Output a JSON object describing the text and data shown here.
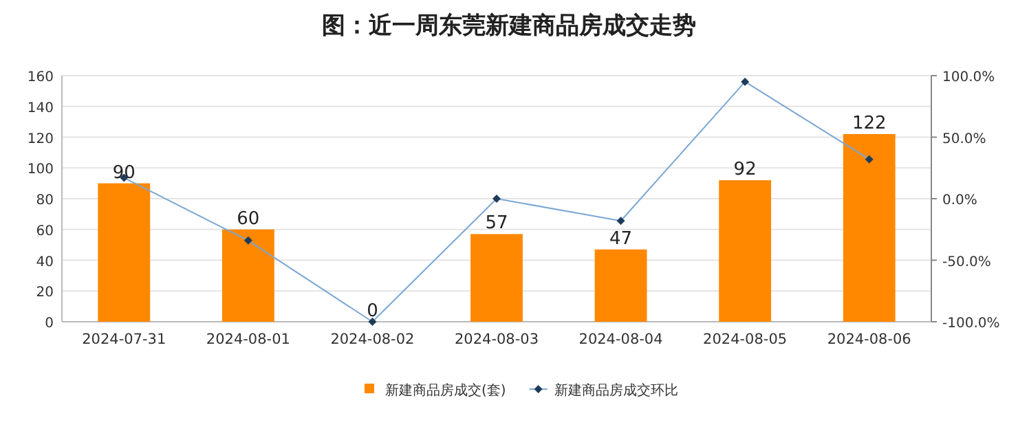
{
  "chart_data": {
    "type": "bar",
    "title": "图：近一周东莞新建商品房成交走势",
    "categories": [
      "2024-07-31",
      "2024-08-01",
      "2024-08-02",
      "2024-08-03",
      "2024-08-04",
      "2024-08-05",
      "2024-08-06"
    ],
    "series": [
      {
        "name": "新建商品房成交(套)",
        "color": "#ff8800",
        "values": [
          90,
          60,
          0,
          57,
          47,
          92,
          122
        ],
        "value_labels": [
          "90",
          "60",
          "0",
          "57",
          "47",
          "92",
          "122"
        ]
      },
      {
        "name": "新建商品房成交环比",
        "type": "line",
        "axis": "y2",
        "color": "#7ba7d4",
        "marker": "diamond",
        "values": [
          17,
          -34,
          -100,
          0,
          -18,
          95,
          32
        ]
      }
    ],
    "ylim": [
      0,
      160
    ],
    "yticks": [
      0,
      20,
      40,
      60,
      80,
      100,
      120,
      140,
      160
    ],
    "y2lim": [
      -100,
      100
    ],
    "y2ticks": [
      {
        "value": -100,
        "label": "-100.0%"
      },
      {
        "value": -50,
        "label": "-50.0%"
      },
      {
        "value": 0,
        "label": "0.0%"
      },
      {
        "value": 50,
        "label": "50.0%"
      },
      {
        "value": 100,
        "label": "100.0%"
      }
    ],
    "grid": "y",
    "legend": "bottom"
  }
}
